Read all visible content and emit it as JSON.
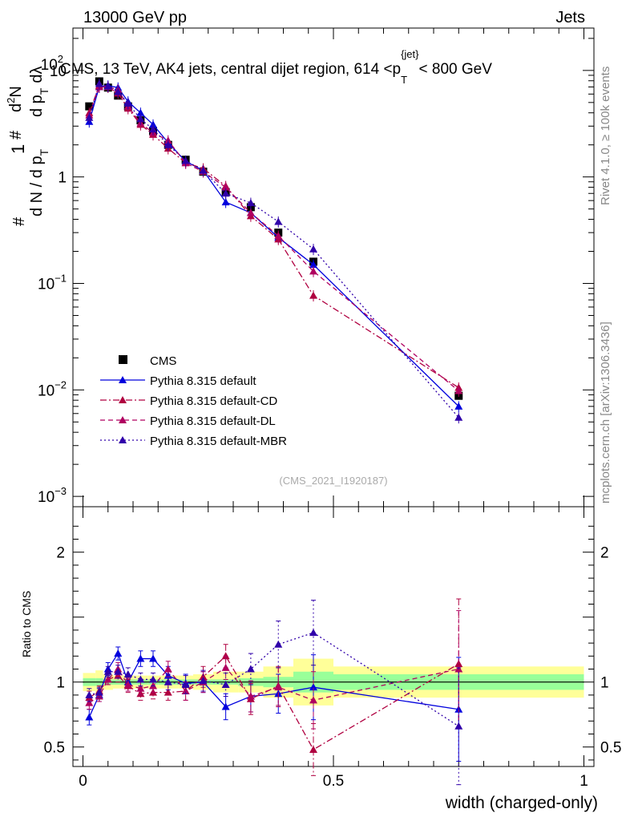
{
  "header": {
    "left": "13000 GeV pp",
    "right": "Jets",
    "side_rivet": "Rivet 4.1.0, ≥ 100k events",
    "side_mcplots": "mcplots.cern.ch [arXiv:1306.3436]",
    "watermark": "(CMS_2021_I1920187)"
  },
  "main_plot": {
    "title_parts": [
      "CMS, 13 TeV, AK4 jets, central dijet region, 614 <p",
      "T",
      "{jet}",
      "< 800 GeV"
    ],
    "ylabel_parts": [
      "1",
      "d N / d p",
      "T",
      "#",
      "d",
      "2",
      "N",
      "d p",
      "T",
      "dλ",
      "#"
    ],
    "yaxis": {
      "scale": "log",
      "ylim": [
        0.0008,
        25
      ],
      "ticks": [
        {
          "value": 0.001,
          "label_base": "10",
          "label_exp": "−3"
        },
        {
          "value": 0.01,
          "label_base": "10",
          "label_exp": "−2"
        },
        {
          "value": 0.1,
          "label_base": "10",
          "label_exp": "−1"
        },
        {
          "value": 1,
          "label_base": "1",
          "label_exp": ""
        },
        {
          "value": 10,
          "label_base": "10",
          "label_exp": ""
        },
        {
          "value": 100,
          "label_base": "10",
          "label_exp": "2"
        }
      ]
    }
  },
  "ratio_plot": {
    "ylabel": "Ratio to CMS",
    "ylim": [
      0.35,
      2.35
    ],
    "yticks": [
      {
        "value": 0.5,
        "label": "0.5"
      },
      {
        "value": 1,
        "label": "1"
      },
      {
        "value": 2,
        "label": "2"
      }
    ],
    "xlabel": "width (charged-only)",
    "xticks": [
      {
        "value": 0,
        "label": "0"
      },
      {
        "value": 0.5,
        "label": "0.5"
      },
      {
        "value": 1,
        "label": "1"
      }
    ]
  },
  "chart_data": {
    "type": "scatter",
    "xlim": [
      -0.02,
      1.02
    ],
    "legend_position": "lower-left",
    "colors": {
      "cms": "#000000",
      "default": "#0000dd",
      "cd": "#b00040",
      "dl": "#b00060",
      "mbr": "#3000aa",
      "band_stat": "#99ff99",
      "band_tot": "#ffff99"
    },
    "bins": [
      {
        "x": 0.0125,
        "lo": 0.0,
        "hi": 0.025
      },
      {
        "x": 0.0325,
        "lo": 0.025,
        "hi": 0.04
      },
      {
        "x": 0.05,
        "lo": 0.04,
        "hi": 0.06
      },
      {
        "x": 0.07,
        "lo": 0.06,
        "hi": 0.08
      },
      {
        "x": 0.09,
        "lo": 0.08,
        "hi": 0.1
      },
      {
        "x": 0.115,
        "lo": 0.1,
        "hi": 0.13
      },
      {
        "x": 0.14,
        "lo": 0.13,
        "hi": 0.15
      },
      {
        "x": 0.17,
        "lo": 0.15,
        "hi": 0.19
      },
      {
        "x": 0.205,
        "lo": 0.19,
        "hi": 0.22
      },
      {
        "x": 0.24,
        "lo": 0.22,
        "hi": 0.26
      },
      {
        "x": 0.285,
        "lo": 0.26,
        "hi": 0.31
      },
      {
        "x": 0.335,
        "lo": 0.31,
        "hi": 0.36
      },
      {
        "x": 0.39,
        "lo": 0.36,
        "hi": 0.42
      },
      {
        "x": 0.46,
        "lo": 0.42,
        "hi": 0.5
      },
      {
        "x": 0.75,
        "lo": 0.5,
        "hi": 1.0
      }
    ],
    "band_stat": [
      0.03,
      0.03,
      0.02,
      0.02,
      0.02,
      0.02,
      0.02,
      0.02,
      0.02,
      0.02,
      0.02,
      0.03,
      0.04,
      0.08,
      0.06
    ],
    "band_tot": [
      0.07,
      0.09,
      0.06,
      0.05,
      0.05,
      0.05,
      0.05,
      0.05,
      0.05,
      0.06,
      0.08,
      0.08,
      0.12,
      0.18,
      0.12
    ],
    "series": [
      {
        "name": "CMS",
        "key": "cms",
        "marker": "square",
        "line": "none",
        "values": [
          4.6,
          7.9,
          6.9,
          5.8,
          4.6,
          3.4,
          2.7,
          2.0,
          1.45,
          1.12,
          0.72,
          0.52,
          0.3,
          0.16,
          0.0088
        ],
        "ratio": [
          1,
          1,
          1,
          1,
          1,
          1,
          1,
          1,
          1,
          1,
          1,
          1,
          1,
          1,
          1
        ],
        "ratio_err": [
          0,
          0,
          0,
          0,
          0,
          0,
          0,
          0,
          0,
          0,
          0,
          0,
          0,
          0,
          0
        ]
      },
      {
        "name": "Pythia 8.315 default",
        "key": "default",
        "marker": "triangle",
        "line": "solid",
        "values": [
          3.3,
          7.0,
          7.2,
          6.9,
          5.1,
          4.0,
          3.1,
          2.1,
          1.4,
          1.15,
          0.58,
          0.46,
          0.27,
          0.15,
          0.007
        ],
        "ratio": [
          0.73,
          0.9,
          1.1,
          1.22,
          1.0,
          1.18,
          1.18,
          1.05,
          0.99,
          1.0,
          0.81,
          0.89,
          0.91,
          0.96,
          0.79
        ],
        "ratio_err": [
          0.06,
          0.05,
          0.05,
          0.05,
          0.05,
          0.06,
          0.06,
          0.07,
          0.07,
          0.08,
          0.1,
          0.12,
          0.15,
          0.25,
          0.4
        ]
      },
      {
        "name": "Pythia 8.315 default-CD",
        "key": "cd",
        "marker": "triangle",
        "line": "dashdot",
        "values": [
          4.0,
          7.2,
          7.0,
          6.1,
          4.4,
          3.1,
          2.5,
          1.85,
          1.36,
          1.2,
          0.82,
          0.43,
          0.26,
          0.077,
          0.0105
        ],
        "ratio": [
          0.88,
          0.93,
          1.02,
          1.05,
          0.97,
          0.91,
          0.92,
          0.92,
          0.93,
          1.04,
          1.2,
          0.87,
          0.97,
          0.48,
          1.14
        ],
        "ratio_err": [
          0.05,
          0.04,
          0.04,
          0.05,
          0.05,
          0.05,
          0.05,
          0.06,
          0.07,
          0.08,
          0.09,
          0.12,
          0.15,
          0.2,
          0.5
        ]
      },
      {
        "name": "Pythia 8.315 default-DL",
        "key": "dl",
        "marker": "triangle",
        "line": "dashed",
        "values": [
          3.8,
          7.0,
          7.0,
          6.6,
          4.6,
          3.2,
          2.6,
          2.2,
          1.35,
          1.12,
          0.8,
          0.46,
          0.28,
          0.13,
          0.0098
        ],
        "ratio": [
          0.84,
          0.89,
          1.02,
          1.1,
          0.98,
          0.95,
          0.97,
          1.1,
          0.93,
          1.0,
          1.11,
          0.89,
          0.96,
          0.86,
          1.1
        ],
        "ratio_err": [
          0.05,
          0.04,
          0.04,
          0.05,
          0.05,
          0.05,
          0.05,
          0.06,
          0.07,
          0.08,
          0.09,
          0.12,
          0.15,
          0.22,
          0.45
        ]
      },
      {
        "name": "Pythia 8.315 default-MBR",
        "key": "mbr",
        "marker": "triangle",
        "line": "dotted",
        "values": [
          3.6,
          7.5,
          7.1,
          6.3,
          4.9,
          3.5,
          2.8,
          2.0,
          1.42,
          1.15,
          0.7,
          0.57,
          0.38,
          0.21,
          0.0055
        ],
        "ratio": [
          0.9,
          0.92,
          1.08,
          1.08,
          1.06,
          1.02,
          1.02,
          1.0,
          0.98,
          1.01,
          0.98,
          1.1,
          1.29,
          1.38,
          0.66
        ],
        "ratio_err": [
          0.05,
          0.04,
          0.04,
          0.05,
          0.05,
          0.05,
          0.05,
          0.06,
          0.07,
          0.08,
          0.09,
          0.12,
          0.18,
          0.25,
          0.45
        ]
      }
    ]
  }
}
